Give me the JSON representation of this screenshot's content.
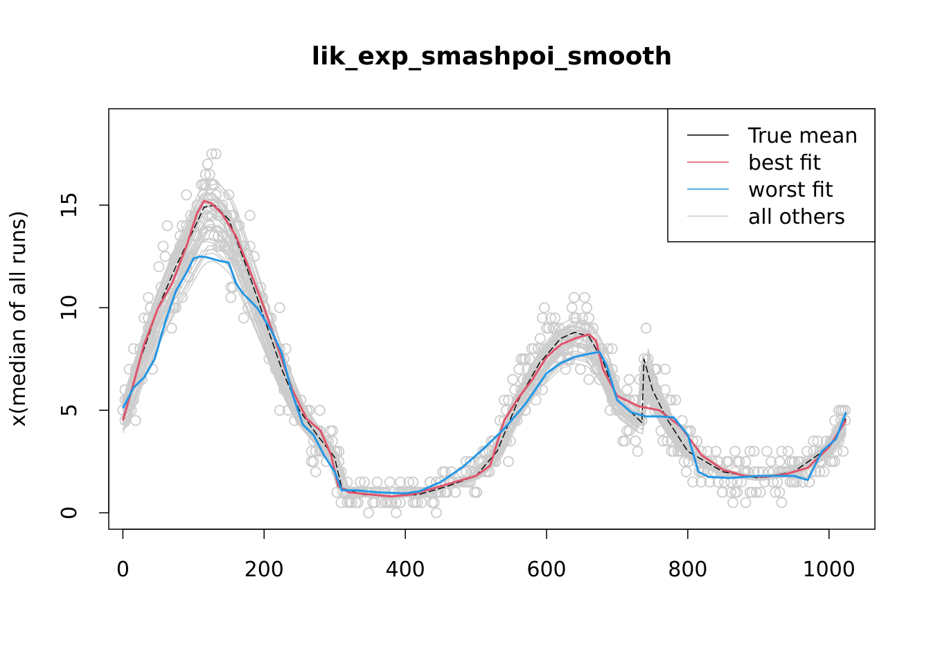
{
  "colors": {
    "true_mean": "#000000",
    "best_fit": "#DF536B",
    "worst_fit": "#2297E6",
    "others": "#CCCCCC",
    "points": "#CCCCCC"
  },
  "chart_data": {
    "type": "line",
    "title": "lik_exp_smashpoi_smooth",
    "xlabel": "",
    "ylabel": "x(median of all runs)",
    "xlim": [
      -20,
      1065
    ],
    "ylim": [
      -0.8,
      19.7
    ],
    "x_ticks": [
      0,
      200,
      400,
      600,
      800,
      1000
    ],
    "x_tick_labels": [
      "0",
      "200",
      "400",
      "600",
      "800",
      "1000"
    ],
    "y_ticks": [
      0,
      5,
      10,
      15
    ],
    "y_tick_labels": [
      "0",
      "5",
      "10",
      "15"
    ],
    "legend": {
      "position": "top-right",
      "entries": [
        {
          "label": "True mean",
          "color_key": "true_mean"
        },
        {
          "label": "best fit",
          "color_key": "best_fit"
        },
        {
          "label": "worst fit",
          "color_key": "worst_fit"
        },
        {
          "label": "all others",
          "color_key": "others"
        }
      ]
    },
    "series": [
      {
        "name": "True mean",
        "color_key": "true_mean",
        "x": [
          0,
          25,
          50,
          75,
          100,
          115,
          130,
          150,
          175,
          200,
          225,
          250,
          275,
          300,
          310,
          340,
          380,
          420,
          460,
          500,
          530,
          560,
          590,
          620,
          640,
          660,
          680,
          700,
          720,
          735,
          738,
          750,
          770,
          800,
          850,
          900,
          950,
          1000,
          1024
        ],
        "y": [
          4.6,
          7.5,
          10.0,
          12.0,
          13.8,
          14.9,
          15.0,
          14.3,
          12.0,
          9.5,
          7.0,
          5.0,
          3.8,
          2.7,
          1.2,
          0.9,
          0.8,
          0.9,
          1.3,
          1.8,
          3.0,
          5.5,
          7.3,
          8.5,
          8.8,
          8.6,
          7.4,
          5.5,
          4.9,
          4.4,
          7.5,
          6.0,
          4.6,
          3.0,
          2.0,
          1.7,
          2.0,
          3.2,
          4.6
        ]
      },
      {
        "name": "best fit",
        "color_key": "best_fit",
        "x": [
          0,
          15,
          30,
          50,
          70,
          90,
          105,
          115,
          125,
          140,
          160,
          180,
          200,
          220,
          240,
          260,
          280,
          295,
          305,
          320,
          350,
          380,
          410,
          440,
          470,
          500,
          520,
          540,
          560,
          580,
          600,
          620,
          640,
          660,
          670,
          680,
          700,
          730,
          760,
          790,
          820,
          850,
          880,
          910,
          940,
          970,
          1000,
          1024
        ],
        "y": [
          4.5,
          6.3,
          8.2,
          10.0,
          11.2,
          13.0,
          14.6,
          15.2,
          15.1,
          14.6,
          13.5,
          11.8,
          10.0,
          8.0,
          6.0,
          4.6,
          4.0,
          2.8,
          1.3,
          1.0,
          0.9,
          0.8,
          0.9,
          1.2,
          1.5,
          1.8,
          2.3,
          4.5,
          5.6,
          6.5,
          7.6,
          8.2,
          8.5,
          8.7,
          8.4,
          7.0,
          5.7,
          5.2,
          5.0,
          4.2,
          2.8,
          2.1,
          1.8,
          1.75,
          1.9,
          2.2,
          3.2,
          4.5
        ]
      },
      {
        "name": "worst fit",
        "color_key": "worst_fit",
        "x": [
          0,
          15,
          30,
          45,
          60,
          75,
          90,
          100,
          110,
          120,
          135,
          150,
          160,
          170,
          190,
          210,
          225,
          240,
          255,
          270,
          285,
          300,
          310,
          330,
          360,
          400,
          420,
          450,
          480,
          510,
          540,
          570,
          600,
          620,
          640,
          660,
          675,
          685,
          700,
          720,
          740,
          760,
          780,
          800,
          815,
          830,
          860,
          900,
          930,
          950,
          970,
          990,
          1010,
          1024
        ],
        "y": [
          5.1,
          6.1,
          6.6,
          7.5,
          9.3,
          10.8,
          11.7,
          12.4,
          12.5,
          12.45,
          12.3,
          12.2,
          11.2,
          10.7,
          10.0,
          8.9,
          7.8,
          5.8,
          4.3,
          3.8,
          2.8,
          2.0,
          1.1,
          1.1,
          1.0,
          0.95,
          1.05,
          1.5,
          2.2,
          3.1,
          4.1,
          5.3,
          6.8,
          7.3,
          7.6,
          7.75,
          7.85,
          7.2,
          5.5,
          4.9,
          4.7,
          4.7,
          4.65,
          3.8,
          2.0,
          1.75,
          1.7,
          1.8,
          1.8,
          1.8,
          1.6,
          3.0,
          3.6,
          4.9
        ]
      }
    ]
  }
}
